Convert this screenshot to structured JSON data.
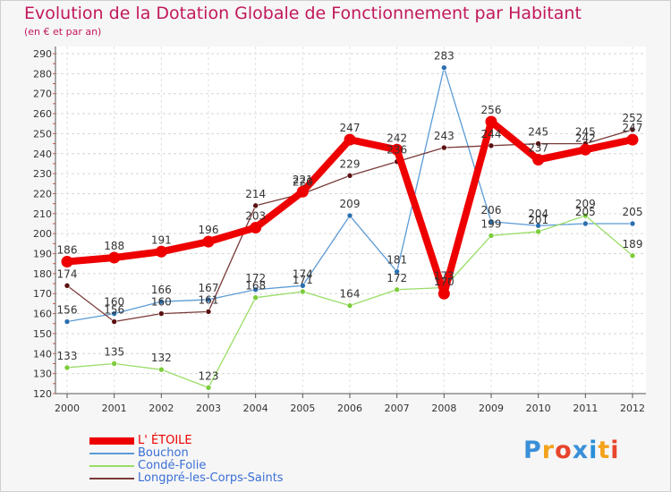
{
  "chart_data": {
    "type": "line",
    "title": "Evolution de la Dotation Globale de Fonctionnement par Habitant",
    "subtitle": "(en € et par an)",
    "xlabel": "",
    "ylabel": "",
    "ylim": [
      120,
      290
    ],
    "yticks": [
      120,
      130,
      140,
      150,
      160,
      170,
      180,
      190,
      200,
      210,
      220,
      230,
      240,
      250,
      260,
      270,
      280,
      290
    ],
    "categories": [
      "2000",
      "2001",
      "2002",
      "2003",
      "2004",
      "2005",
      "2006",
      "2007",
      "2008",
      "2009",
      "2010",
      "2011",
      "2012"
    ],
    "series": [
      {
        "name": "Bouchon",
        "color": "#5b9bd5",
        "dot": "#2a6fb0",
        "width": 1.3,
        "values": [
          156,
          160,
          166,
          167,
          172,
          174,
          209,
          181,
          283,
          206,
          204,
          205,
          205
        ]
      },
      {
        "name": "Condé-Folie",
        "color": "#99dd66",
        "dot": "#7ccd3a",
        "width": 1.3,
        "values": [
          133,
          135,
          132,
          123,
          168,
          171,
          164,
          172,
          173,
          199,
          201,
          209,
          189
        ]
      },
      {
        "name": "Longpré-les-Corps-Saints",
        "color": "#7a3a3a",
        "dot": "#5c1010",
        "width": 1.3,
        "values": [
          174,
          156,
          160,
          161,
          214,
          220,
          229,
          236,
          243,
          244,
          245,
          245,
          252
        ]
      },
      {
        "name": "L' ÉTOILE",
        "color": "#ee0000",
        "dot": "#ee0000",
        "width": 8,
        "values": [
          186,
          188,
          191,
          196,
          203,
          221,
          247,
          242,
          170,
          256,
          237,
          242,
          247
        ]
      }
    ],
    "labels": [
      {
        "text": "156",
        "x": "2000",
        "y": 156
      },
      {
        "text": "160",
        "x": "2001",
        "y": 160
      },
      {
        "text": "166",
        "x": "2002",
        "y": 166
      },
      {
        "text": "167",
        "x": "2003",
        "y": 167
      },
      {
        "text": "172",
        "x": "2004",
        "y": 172
      },
      {
        "text": "174",
        "x": "2005",
        "y": 174
      },
      {
        "text": "209",
        "x": "2006",
        "y": 209
      },
      {
        "text": "181",
        "x": "2007",
        "y": 181
      },
      {
        "text": "283",
        "x": "2008",
        "y": 283
      },
      {
        "text": "206",
        "x": "2009",
        "y": 206
      },
      {
        "text": "204",
        "x": "2010",
        "y": 204
      },
      {
        "text": "205",
        "x": "2011",
        "y": 205
      },
      {
        "text": "205",
        "x": "2012",
        "y": 205
      },
      {
        "text": "133",
        "x": "2000",
        "y": 133
      },
      {
        "text": "135",
        "x": "2001",
        "y": 135
      },
      {
        "text": "132",
        "x": "2002",
        "y": 132
      },
      {
        "text": "123",
        "x": "2003",
        "y": 123
      },
      {
        "text": "168",
        "x": "2004",
        "y": 168
      },
      {
        "text": "171",
        "x": "2005",
        "y": 171
      },
      {
        "text": "164",
        "x": "2006",
        "y": 164
      },
      {
        "text": "172",
        "x": "2007",
        "y": 172
      },
      {
        "text": "173",
        "x": "2008",
        "y": 173
      },
      {
        "text": "199",
        "x": "2009",
        "y": 199
      },
      {
        "text": "201",
        "x": "2010",
        "y": 201
      },
      {
        "text": "209",
        "x": "2011",
        "y": 209
      },
      {
        "text": "189",
        "x": "2012",
        "y": 189
      },
      {
        "text": "174",
        "x": "2000",
        "y": 174
      },
      {
        "text": "156",
        "x": "2001",
        "y": 156
      },
      {
        "text": "160",
        "x": "2002",
        "y": 160
      },
      {
        "text": "161",
        "x": "2003",
        "y": 161
      },
      {
        "text": "214",
        "x": "2004",
        "y": 214
      },
      {
        "text": "220",
        "x": "2005",
        "y": 220
      },
      {
        "text": "229",
        "x": "2006",
        "y": 229
      },
      {
        "text": "236",
        "x": "2007",
        "y": 236
      },
      {
        "text": "243",
        "x": "2008",
        "y": 243
      },
      {
        "text": "244",
        "x": "2009",
        "y": 244
      },
      {
        "text": "245",
        "x": "2010",
        "y": 245
      },
      {
        "text": "245",
        "x": "2011",
        "y": 245
      },
      {
        "text": "252",
        "x": "2012",
        "y": 252
      },
      {
        "text": "186",
        "x": "2000",
        "y": 186
      },
      {
        "text": "188",
        "x": "2001",
        "y": 188
      },
      {
        "text": "191",
        "x": "2002",
        "y": 191
      },
      {
        "text": "196",
        "x": "2003",
        "y": 196
      },
      {
        "text": "203",
        "x": "2004",
        "y": 203
      },
      {
        "text": "221",
        "x": "2005",
        "y": 221
      },
      {
        "text": "247",
        "x": "2006",
        "y": 247
      },
      {
        "text": "242",
        "x": "2007",
        "y": 242
      },
      {
        "text": "170",
        "x": "2008",
        "y": 170
      },
      {
        "text": "256",
        "x": "2009",
        "y": 256
      },
      {
        "text": "237",
        "x": "2010",
        "y": 237
      },
      {
        "text": "242",
        "x": "2011",
        "y": 242
      },
      {
        "text": "247",
        "x": "2012",
        "y": 247
      }
    ],
    "legend_position": "bottom-left"
  },
  "legend": {
    "items": [
      {
        "label": "L' ÉTOILE",
        "color": "#ee0000",
        "text_color": "#ee0000"
      },
      {
        "label": "Bouchon",
        "color": "#5b9bd5",
        "text_color": "#3b6fd6"
      },
      {
        "label": "Condé-Folie",
        "color": "#99dd66",
        "text_color": "#3b6fd6"
      },
      {
        "label": "Longpré-les-Corps-Saints",
        "color": "#7a3a3a",
        "text_color": "#3b6fd6"
      }
    ]
  },
  "logo": {
    "text": "Proxiti",
    "letter_colors": [
      "#3a8fd8",
      "#f3a21b",
      "#e8452c",
      "#3a8fd8",
      "#2a8fd8",
      "#f3a21b",
      "#e8452c"
    ]
  }
}
